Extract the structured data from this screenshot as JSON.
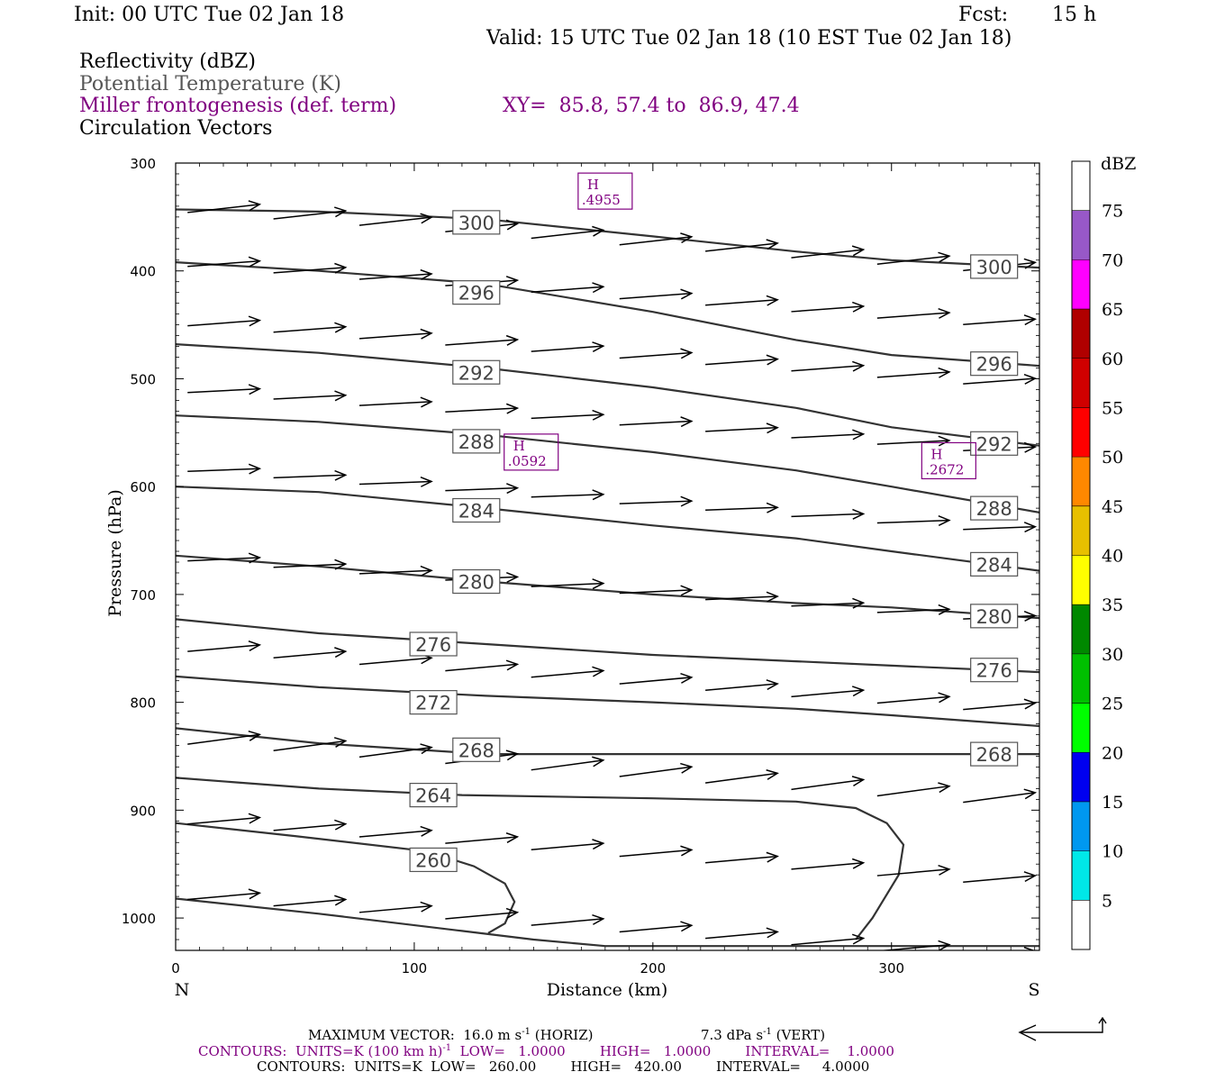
{
  "header": {
    "init": "Init: 00 UTC Tue 02 Jan 18",
    "fcst_label": "Fcst:",
    "fcst_value": "15 h",
    "valid": "Valid: 15 UTC Tue 02 Jan 18 (10 EST Tue 02 Jan 18)"
  },
  "legend_lines": {
    "reflectivity": "Reflectivity (dBZ)",
    "theta": "Potential Temperature (K)",
    "miller": "Miller frontogenesis (def. term)",
    "xy": "XY=  85.8, 57.4 to  86.9, 47.4",
    "vectors": "Circulation Vectors"
  },
  "colors": {
    "frontogenesis": "#800080",
    "theta_line": "#333333",
    "vectors": "#000000"
  },
  "chart_data": {
    "type": "line",
    "xlabel": "Distance (km)",
    "ylabel": "Pressure (hPa)",
    "xlim": [
      0,
      362
    ],
    "ylim": [
      1030,
      300
    ],
    "x_ticks": [
      "0",
      "100",
      "200",
      "300"
    ],
    "y_ticks": [
      "300",
      "400",
      "500",
      "600",
      "700",
      "800",
      "900",
      "1000"
    ],
    "x_end_labels": {
      "left": "N",
      "right": "S"
    },
    "theta_contours": [
      {
        "value": "300",
        "points": [
          [
            0,
            343
          ],
          [
            60,
            345
          ],
          [
            130,
            352
          ],
          [
            200,
            368
          ],
          [
            260,
            382
          ],
          [
            300,
            390
          ],
          [
            362,
            397
          ]
        ]
      },
      {
        "value": "296",
        "points": [
          [
            0,
            392
          ],
          [
            60,
            400
          ],
          [
            130,
            412
          ],
          [
            200,
            438
          ],
          [
            260,
            464
          ],
          [
            300,
            478
          ],
          [
            362,
            488
          ]
        ]
      },
      {
        "value": "292",
        "points": [
          [
            0,
            468
          ],
          [
            60,
            476
          ],
          [
            130,
            490
          ],
          [
            200,
            508
          ],
          [
            260,
            527
          ],
          [
            300,
            545
          ],
          [
            362,
            562
          ]
        ]
      },
      {
        "value": "288",
        "points": [
          [
            0,
            534
          ],
          [
            60,
            540
          ],
          [
            130,
            552
          ],
          [
            200,
            568
          ],
          [
            260,
            585
          ],
          [
            300,
            600
          ],
          [
            362,
            624
          ]
        ]
      },
      {
        "value": "284",
        "points": [
          [
            0,
            600
          ],
          [
            60,
            605
          ],
          [
            130,
            620
          ],
          [
            200,
            636
          ],
          [
            260,
            648
          ],
          [
            300,
            660
          ],
          [
            362,
            678
          ]
        ]
      },
      {
        "value": "280",
        "points": [
          [
            0,
            664
          ],
          [
            60,
            674
          ],
          [
            130,
            688
          ],
          [
            200,
            700
          ],
          [
            260,
            708
          ],
          [
            300,
            712
          ],
          [
            362,
            722
          ]
        ]
      },
      {
        "value": "276",
        "points": [
          [
            0,
            723
          ],
          [
            60,
            736
          ],
          [
            130,
            746
          ],
          [
            200,
            756
          ],
          [
            260,
            762
          ],
          [
            300,
            766
          ],
          [
            362,
            772
          ]
        ]
      },
      {
        "value": "272",
        "points": [
          [
            0,
            776
          ],
          [
            60,
            786
          ],
          [
            130,
            794
          ],
          [
            200,
            800
          ],
          [
            260,
            806
          ],
          [
            300,
            812
          ],
          [
            362,
            822
          ]
        ]
      },
      {
        "value": "268",
        "points": [
          [
            0,
            824
          ],
          [
            60,
            838
          ],
          [
            130,
            848
          ],
          [
            200,
            848
          ],
          [
            260,
            848
          ],
          [
            300,
            848
          ],
          [
            362,
            848
          ]
        ]
      },
      {
        "value": "264",
        "points": [
          [
            0,
            870
          ],
          [
            60,
            880
          ],
          [
            120,
            886
          ],
          [
            200,
            889
          ],
          [
            260,
            892
          ],
          [
            285,
            898
          ],
          [
            298,
            912
          ],
          [
            305,
            932
          ],
          [
            303,
            960
          ],
          [
            292,
            1000
          ],
          [
            285,
            1020
          ]
        ]
      },
      {
        "value": "260",
        "points": [
          [
            0,
            912
          ],
          [
            50,
            924
          ],
          [
            105,
            938
          ],
          [
            125,
            952
          ],
          [
            138,
            968
          ],
          [
            142,
            985
          ],
          [
            138,
            1005
          ],
          [
            131,
            1014
          ]
        ]
      },
      {
        "value": "",
        "points": [
          [
            0,
            982
          ],
          [
            60,
            996
          ],
          [
            120,
            1012
          ],
          [
            150,
            1020
          ],
          [
            180,
            1026
          ],
          [
            250,
            1026
          ],
          [
            362,
            1026
          ]
        ]
      }
    ],
    "theta_labels": [
      {
        "text": "300",
        "x": 126,
        "p": 355
      },
      {
        "text": "300",
        "x": 343,
        "p": 396
      },
      {
        "text": "296",
        "x": 126,
        "p": 420
      },
      {
        "text": "296",
        "x": 343,
        "p": 486
      },
      {
        "text": "292",
        "x": 126,
        "p": 494
      },
      {
        "text": "292",
        "x": 343,
        "p": 560
      },
      {
        "text": "288",
        "x": 126,
        "p": 558
      },
      {
        "text": "288",
        "x": 343,
        "p": 620
      },
      {
        "text": "284",
        "x": 126,
        "p": 622
      },
      {
        "text": "284",
        "x": 343,
        "p": 672
      },
      {
        "text": "280",
        "x": 126,
        "p": 688
      },
      {
        "text": "280",
        "x": 343,
        "p": 720
      },
      {
        "text": "276",
        "x": 108,
        "p": 746
      },
      {
        "text": "276",
        "x": 343,
        "p": 770
      },
      {
        "text": "272",
        "x": 108,
        "p": 800
      },
      {
        "text": "268",
        "x": 126,
        "p": 844
      },
      {
        "text": "268",
        "x": 343,
        "p": 848
      },
      {
        "text": "264",
        "x": 108,
        "p": 886
      },
      {
        "text": "260",
        "x": 108,
        "p": 946
      }
    ],
    "frontogenesis_maxima": [
      {
        "label": "H",
        "value": ".4955",
        "x": 180,
        "p": 326
      },
      {
        "label": "H",
        "value": ".0592",
        "x": 149,
        "p": 568
      },
      {
        "label": "H",
        "value": ".2672",
        "x": 324,
        "p": 576
      }
    ],
    "vector_rows": [
      {
        "p": [
          345,
          330
        ],
        "u": 1.0
      },
      {
        "p": [
          395,
          385
        ],
        "u": 1.0
      },
      {
        "p": [
          450,
          440
        ],
        "u": 1.0
      },
      {
        "p": [
          512,
          505
        ],
        "u": 1.0
      },
      {
        "p": [
          585,
          580
        ],
        "u": 1.0
      },
      {
        "p": [
          668,
          662
        ],
        "u": 1.0
      },
      {
        "p": [
          752,
          740
        ],
        "u": 1.0
      },
      {
        "p": [
          838,
          820
        ],
        "u": 1.0
      },
      {
        "p": [
          912,
          900
        ],
        "u": 1.0
      },
      {
        "p": [
          982,
          970
        ],
        "u": 1.0
      }
    ],
    "colorbar": {
      "unit": "dBZ",
      "levels": [
        "5",
        "10",
        "15",
        "20",
        "25",
        "30",
        "35",
        "40",
        "45",
        "50",
        "55",
        "60",
        "65",
        "70",
        "75"
      ],
      "colors": [
        "#ffffff",
        "#00e8e8",
        "#0098f0",
        "#0000f0",
        "#00ff00",
        "#00c000",
        "#008800",
        "#ffff00",
        "#e8c000",
        "#ff8800",
        "#ff0000",
        "#d00000",
        "#b00000",
        "#ff00ff",
        "#9858c8",
        "#ffffff"
      ]
    }
  },
  "footer": {
    "max_vector": "MAXIMUM VECTOR:  16.0 m s",
    "max_vector_exp": "-1",
    "max_vector_h": "(HORIZ)",
    "max_vector_v": "7.3 dPa s",
    "max_vector_v_exp": "-1",
    "max_vector_v_end": "(VERT)",
    "contours1": "CONTOURS:  UNITS=K (100 km h)",
    "contours1_exp": "-1",
    "contours1_rest": "  LOW=   1.0000        HIGH=   1.0000        INTERVAL=    1.0000",
    "contours2": "CONTOURS:  UNITS=K  LOW=   260.00        HIGH=   420.00        INTERVAL=     4.0000"
  }
}
